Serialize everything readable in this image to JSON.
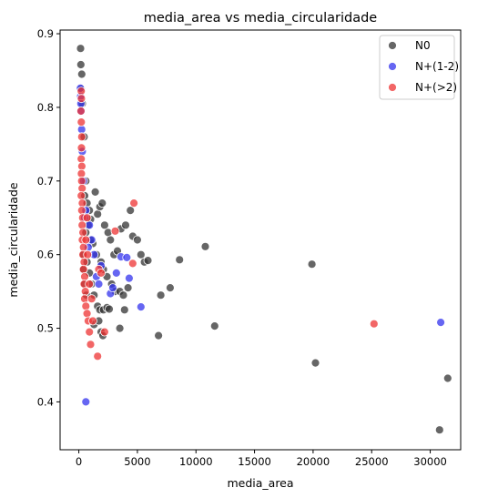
{
  "chart_data": {
    "type": "scatter",
    "title": "media_area vs media_circularidade",
    "xlabel": "media_area",
    "ylabel": "media_circularidade",
    "xlim": [
      -1600,
      32600
    ],
    "ylim": [
      0.335,
      0.905
    ],
    "xticks": [
      0,
      5000,
      10000,
      15000,
      20000,
      25000,
      30000
    ],
    "yticks": [
      0.4,
      0.5,
      0.6,
      0.7,
      0.8,
      0.9
    ],
    "grid": false,
    "legend_position": "top-right",
    "series": [
      {
        "name": "N0",
        "color": "#333333",
        "points": [
          [
            150,
            0.88
          ],
          [
            170,
            0.858
          ],
          [
            250,
            0.845
          ],
          [
            200,
            0.825
          ],
          [
            300,
            0.805
          ],
          [
            450,
            0.76
          ],
          [
            600,
            0.7
          ],
          [
            500,
            0.68
          ],
          [
            700,
            0.67
          ],
          [
            900,
            0.66
          ],
          [
            1000,
            0.648
          ],
          [
            1400,
            0.685
          ],
          [
            1600,
            0.655
          ],
          [
            1800,
            0.665
          ],
          [
            2000,
            0.67
          ],
          [
            2200,
            0.64
          ],
          [
            2500,
            0.63
          ],
          [
            2700,
            0.62
          ],
          [
            3000,
            0.6
          ],
          [
            3300,
            0.605
          ],
          [
            3600,
            0.635
          ],
          [
            4000,
            0.64
          ],
          [
            4400,
            0.66
          ],
          [
            4600,
            0.625
          ],
          [
            5000,
            0.62
          ],
          [
            5300,
            0.6
          ],
          [
            5600,
            0.59
          ],
          [
            5900,
            0.592
          ],
          [
            1200,
            0.615
          ],
          [
            1500,
            0.6
          ],
          [
            1900,
            0.59
          ],
          [
            2100,
            0.58
          ],
          [
            2400,
            0.57
          ],
          [
            2800,
            0.56
          ],
          [
            3100,
            0.55
          ],
          [
            3500,
            0.55
          ],
          [
            3800,
            0.545
          ],
          [
            4200,
            0.555
          ],
          [
            700,
            0.59
          ],
          [
            900,
            0.575
          ],
          [
            1100,
            0.56
          ],
          [
            1300,
            0.545
          ],
          [
            1600,
            0.53
          ],
          [
            1800,
            0.525
          ],
          [
            2100,
            0.525
          ],
          [
            2400,
            0.528
          ],
          [
            2600,
            0.526
          ],
          [
            3500,
            0.5
          ],
          [
            3900,
            0.525
          ],
          [
            1300,
            0.505
          ],
          [
            1700,
            0.51
          ],
          [
            1900,
            0.495
          ],
          [
            2050,
            0.49
          ],
          [
            600,
            0.63
          ],
          [
            800,
            0.64
          ],
          [
            1000,
            0.62
          ],
          [
            400,
            0.6
          ],
          [
            350,
            0.58
          ],
          [
            500,
            0.56
          ],
          [
            650,
            0.545
          ],
          [
            7000,
            0.545
          ],
          [
            7800,
            0.555
          ],
          [
            8600,
            0.593
          ],
          [
            6800,
            0.49
          ],
          [
            10800,
            0.611
          ],
          [
            11600,
            0.503
          ],
          [
            19900,
            0.587
          ],
          [
            20200,
            0.453
          ],
          [
            30800,
            0.362
          ],
          [
            31500,
            0.432
          ]
        ]
      },
      {
        "name": "N+(1-2)",
        "color": "#3333ee",
        "points": [
          [
            130,
            0.826
          ],
          [
            150,
            0.815
          ],
          [
            170,
            0.805
          ],
          [
            200,
            0.795
          ],
          [
            240,
            0.77
          ],
          [
            300,
            0.74
          ],
          [
            400,
            0.7
          ],
          [
            600,
            0.66
          ],
          [
            900,
            0.64
          ],
          [
            1100,
            0.62
          ],
          [
            1300,
            0.6
          ],
          [
            1500,
            0.57
          ],
          [
            1700,
            0.56
          ],
          [
            1900,
            0.585
          ],
          [
            2700,
            0.547
          ],
          [
            2900,
            0.555
          ],
          [
            3200,
            0.575
          ],
          [
            3600,
            0.597
          ],
          [
            4100,
            0.596
          ],
          [
            4300,
            0.568
          ],
          [
            5300,
            0.529
          ],
          [
            600,
            0.4
          ],
          [
            500,
            0.65
          ],
          [
            800,
            0.61
          ],
          [
            30900,
            0.508
          ]
        ]
      },
      {
        "name": "N+(>2)",
        "color": "#ee3333",
        "points": [
          [
            200,
            0.822
          ],
          [
            220,
            0.812
          ],
          [
            180,
            0.795
          ],
          [
            210,
            0.78
          ],
          [
            250,
            0.76
          ],
          [
            230,
            0.745
          ],
          [
            200,
            0.73
          ],
          [
            260,
            0.72
          ],
          [
            220,
            0.71
          ],
          [
            240,
            0.7
          ],
          [
            280,
            0.69
          ],
          [
            200,
            0.68
          ],
          [
            300,
            0.67
          ],
          [
            250,
            0.66
          ],
          [
            330,
            0.65
          ],
          [
            280,
            0.64
          ],
          [
            350,
            0.63
          ],
          [
            300,
            0.62
          ],
          [
            400,
            0.61
          ],
          [
            350,
            0.6
          ],
          [
            450,
            0.59
          ],
          [
            400,
            0.58
          ],
          [
            500,
            0.57
          ],
          [
            450,
            0.56
          ],
          [
            550,
            0.55
          ],
          [
            500,
            0.54
          ],
          [
            600,
            0.53
          ],
          [
            700,
            0.52
          ],
          [
            800,
            0.51
          ],
          [
            900,
            0.495
          ],
          [
            1000,
            0.478
          ],
          [
            1600,
            0.462
          ],
          [
            1200,
            0.51
          ],
          [
            1700,
            0.58
          ],
          [
            1900,
            0.575
          ],
          [
            2200,
            0.495
          ],
          [
            3100,
            0.632
          ],
          [
            4600,
            0.588
          ],
          [
            4700,
            0.67
          ],
          [
            25200,
            0.506
          ],
          [
            600,
            0.62
          ],
          [
            750,
            0.6
          ],
          [
            900,
            0.56
          ],
          [
            1100,
            0.54
          ],
          [
            700,
            0.65
          ]
        ]
      }
    ]
  }
}
